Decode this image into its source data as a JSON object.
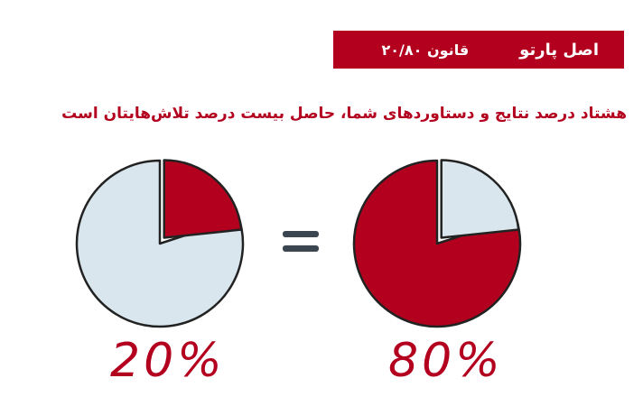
{
  "banner": {
    "title": "اصل پارتو",
    "rule": "قانون ۲۰/۸۰"
  },
  "subtitle": "هشتاد درصد نتایج و دستاوردهای شما، حاصل بیست درصد تلاش‌هایتان است",
  "colors": {
    "accent": "#b3001e",
    "light": "#d9e6ee",
    "outline": "#222222",
    "equals": "#3c4650"
  },
  "charts": [
    {
      "label": "20%",
      "highlight_fraction": 0.2,
      "highlight_color": "#b3001e",
      "rest_color": "#d9e6ee"
    },
    {
      "label": "80%",
      "highlight_fraction": 0.2,
      "highlight_color": "#d9e6ee",
      "rest_color": "#b3001e"
    }
  ],
  "chart_data": [
    {
      "type": "pie",
      "values": [
        20,
        80
      ],
      "label": "20%"
    },
    {
      "type": "pie",
      "values": [
        20,
        80
      ],
      "label": "80%"
    }
  ]
}
